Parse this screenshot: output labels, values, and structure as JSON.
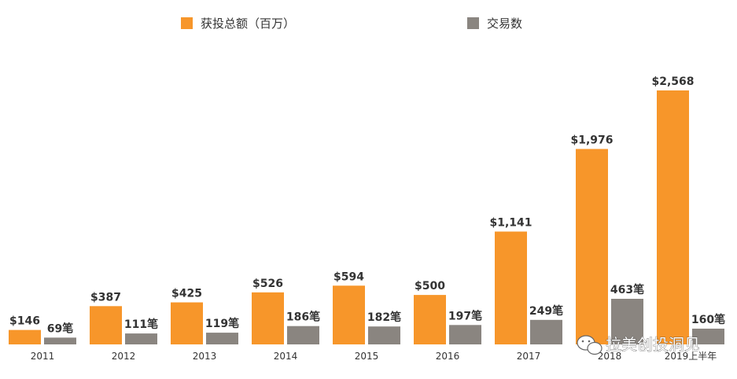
{
  "chart_data": {
    "type": "bar",
    "categories": [
      "2011",
      "2012",
      "2013",
      "2014",
      "2015",
      "2016",
      "2017",
      "2018",
      "2019上半年"
    ],
    "series": [
      {
        "name": "获投总额（百万）",
        "color": "#f7962a",
        "values": [
          146,
          387,
          425,
          526,
          594,
          500,
          1141,
          1976,
          2568
        ],
        "labels": [
          "$146",
          "$387",
          "$425",
          "$526",
          "$594",
          "$500",
          "$1,141",
          "$1,976",
          "$2,568"
        ]
      },
      {
        "name": "交易数",
        "color": "#8a8580",
        "values": [
          69,
          111,
          119,
          186,
          182,
          197,
          249,
          463,
          160
        ],
        "labels": [
          "69笔",
          "111笔",
          "119笔",
          "186笔",
          "182笔",
          "197笔",
          "249笔",
          "463笔",
          "160笔"
        ]
      }
    ],
    "title": "",
    "xlabel": "",
    "ylabel": "",
    "grid": false,
    "legend_position": "top"
  },
  "watermark": {
    "text": "拉美创投洞见",
    "icon": "wechat-icon"
  }
}
